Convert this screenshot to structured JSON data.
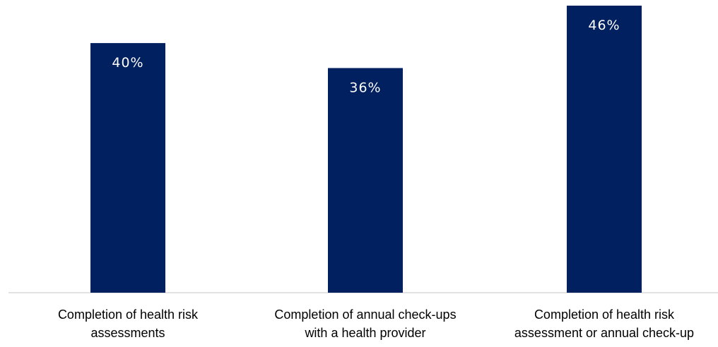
{
  "chart_data": {
    "type": "bar",
    "categories": [
      [
        "Completion of health risk",
        "assessments"
      ],
      [
        "Completion of annual check-ups",
        "with a health provider"
      ],
      [
        "Completion of health risk",
        "assessment or annual check-up"
      ]
    ],
    "values": [
      40,
      36,
      46
    ],
    "value_labels": [
      "40%",
      "36%",
      "46%"
    ],
    "ylim": [
      0,
      46
    ],
    "grid": false,
    "legend": "none",
    "bar_color": "#002060",
    "value_label_color": "#ffffff",
    "category_label_color": "#000000",
    "axis_line_color": "#d9d9d9"
  }
}
